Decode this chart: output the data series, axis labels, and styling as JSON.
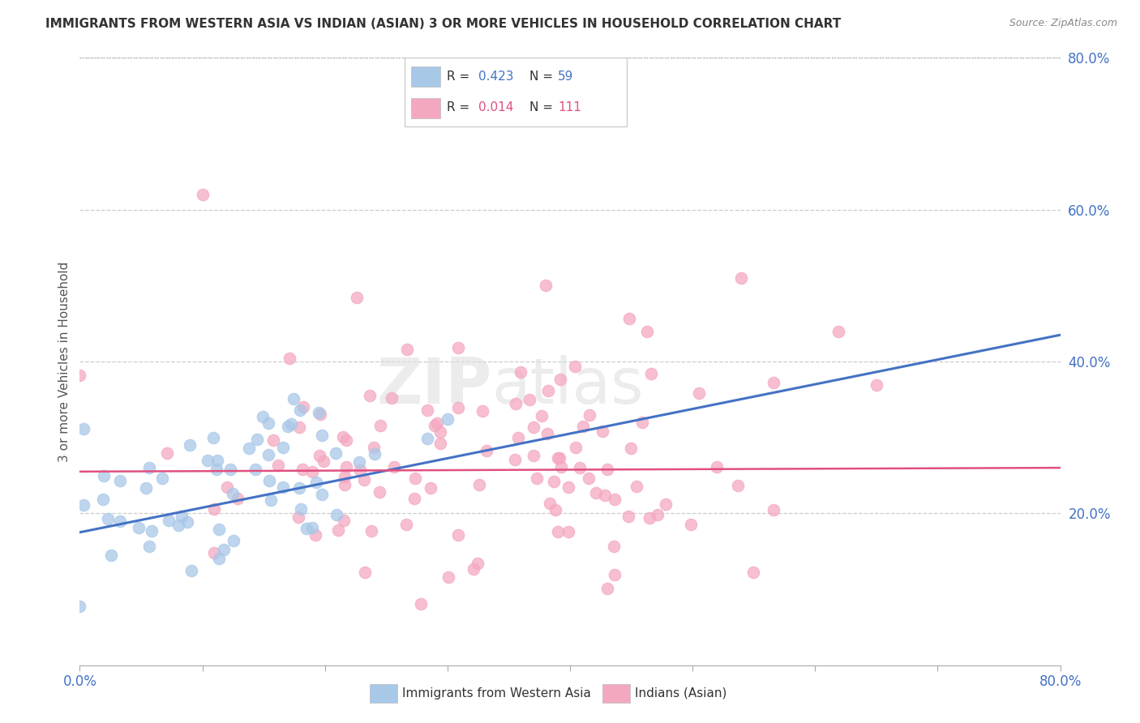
{
  "title": "IMMIGRANTS FROM WESTERN ASIA VS INDIAN (ASIAN) 3 OR MORE VEHICLES IN HOUSEHOLD CORRELATION CHART",
  "source": "Source: ZipAtlas.com",
  "ylabel": "3 or more Vehicles in Household",
  "r1": 0.423,
  "n1": 59,
  "r2": 0.014,
  "n2": 111,
  "legend1": "Immigrants from Western Asia",
  "legend2": "Indians (Asian)",
  "color1": "#a8c8e8",
  "color2": "#f4a8c0",
  "line1_color": "#4472c4",
  "line2_color": "#e05080",
  "watermark": "ZIPAtlas",
  "xmin": 0.0,
  "xmax": 0.8,
  "ymin": 0.0,
  "ymax": 0.8,
  "yticks_right": [
    0.2,
    0.4,
    0.6,
    0.8
  ],
  "ytick_labels_right": [
    "20.0%",
    "40.0%",
    "60.0%",
    "80.0%"
  ],
  "background_color": "#ffffff",
  "line1_y0": 0.175,
  "line1_y1": 0.435,
  "line2_y0": 0.255,
  "line2_y1": 0.26,
  "seed1": 42,
  "seed2": 99
}
